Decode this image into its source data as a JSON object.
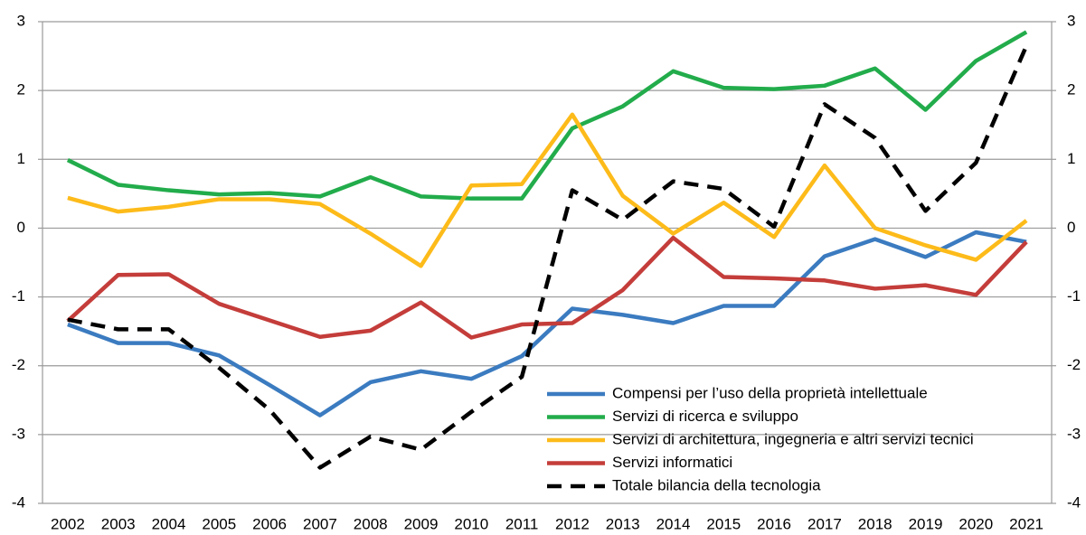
{
  "chart_data": {
    "type": "line",
    "categories": [
      "2002",
      "2003",
      "2004",
      "2005",
      "2006",
      "2007",
      "2008",
      "2009",
      "2010",
      "2011",
      "2012",
      "2013",
      "2014",
      "2015",
      "2016",
      "2017",
      "2018",
      "2019",
      "2020",
      "2021"
    ],
    "series": [
      {
        "name": "Compensi per l’uso della proprietà intellettuale",
        "color": "#3b7bc0",
        "values": [
          -1.4,
          -1.67,
          -1.67,
          -1.85,
          -2.28,
          -2.72,
          -2.24,
          -2.08,
          -2.19,
          -1.86,
          -1.17,
          -1.26,
          -1.38,
          -1.13,
          -1.13,
          -0.41,
          -0.16,
          -0.42,
          -0.06,
          -0.2
        ]
      },
      {
        "name": "Servizi di ricerca e sviluppo",
        "color": "#22ac4b",
        "values": [
          0.99,
          0.63,
          0.55,
          0.49,
          0.51,
          0.46,
          0.74,
          0.46,
          0.43,
          0.43,
          1.45,
          1.77,
          2.28,
          2.04,
          2.02,
          2.07,
          2.32,
          1.72,
          2.43,
          2.85
        ]
      },
      {
        "name": "Servizi di architettura, ingegneria e altri servizi tecnici",
        "color": "#fdbb1a",
        "values": [
          0.44,
          0.24,
          0.31,
          0.42,
          0.42,
          0.35,
          -0.08,
          -0.55,
          0.62,
          0.64,
          1.65,
          0.47,
          -0.08,
          0.37,
          -0.13,
          0.91,
          0.0,
          -0.25,
          -0.46,
          0.11
        ]
      },
      {
        "name": "Servizi informatici",
        "color": "#c43d3a",
        "values": [
          -1.35,
          -0.68,
          -0.67,
          -1.1,
          -1.34,
          -1.58,
          -1.49,
          -1.08,
          -1.59,
          -1.4,
          -1.38,
          -0.9,
          -0.14,
          -0.71,
          -0.73,
          -0.76,
          -0.88,
          -0.83,
          -0.97,
          -0.2
        ]
      },
      {
        "name": "Totale bilancia della tecnologia",
        "color": "#000000",
        "dashed": true,
        "values": [
          -1.33,
          -1.47,
          -1.47,
          -2.03,
          -2.64,
          -3.48,
          -3.03,
          -3.22,
          -2.67,
          -2.16,
          0.55,
          0.12,
          0.68,
          0.57,
          0.02,
          1.8,
          1.31,
          0.25,
          0.95,
          2.65
        ]
      }
    ],
    "ylim": [
      -4,
      3
    ],
    "yticks": [
      -4,
      -3,
      -2,
      -1,
      0,
      1,
      2,
      3
    ],
    "y2lim": [
      -4,
      3
    ],
    "y2ticks": [
      -4,
      -3,
      -2,
      -1,
      0,
      1,
      2,
      3
    ],
    "grid": true,
    "legend": "lower right"
  }
}
